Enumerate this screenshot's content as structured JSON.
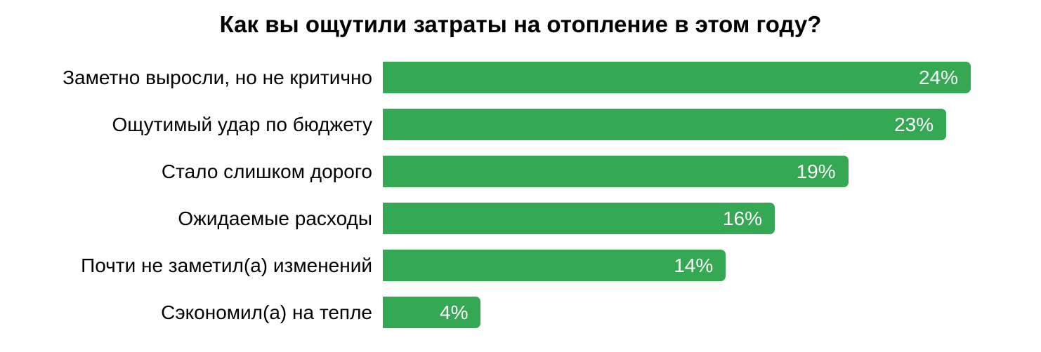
{
  "title": "Как вы ощутили затраты на отопление в этом году?",
  "colors": {
    "bar": "#34a853",
    "bar_value_label": "#ffffff",
    "category_label": "#000000",
    "title": "#000000",
    "background": "#ffffff"
  },
  "chart_data": {
    "type": "bar",
    "orientation": "horizontal",
    "title": "Как вы ощутили затраты на отопление в этом году?",
    "categories": [
      "Заметно выросли, но не критично",
      "Ощутимый удар по бюджету",
      "Стало слишком дорого",
      "Ожидаемые расходы",
      "Почти не заметил(а) изменений",
      "Сэкономил(а) на тепле"
    ],
    "values": [
      24,
      23,
      19,
      16,
      14,
      4
    ],
    "value_labels": [
      "24%",
      "23%",
      "19%",
      "16%",
      "14%",
      "4%"
    ],
    "xlabel": "",
    "ylabel": "",
    "xlim": [
      0,
      24
    ],
    "grid": false,
    "legend": false,
    "value_label_position": "inside-end",
    "bar_corner": "rounded-right"
  }
}
